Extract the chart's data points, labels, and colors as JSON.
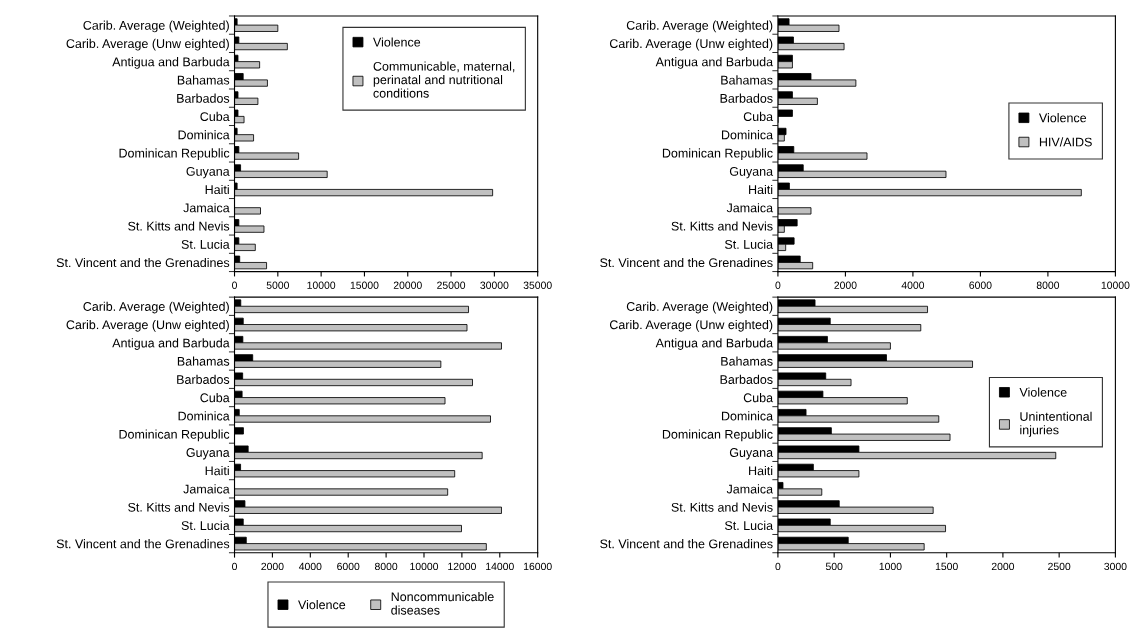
{
  "chart_data": [
    {
      "type": "bar",
      "orientation": "horizontal",
      "categories": [
        "Carib. Average (Weighted)",
        "Carib. Average (Unw eighted)",
        "Antigua and Barbuda",
        "Bahamas",
        "Barbados",
        "Cuba",
        "Dominica",
        "Dominican Republic",
        "Guyana",
        "Haiti",
        "Jamaica",
        "St. Kitts and Nevis",
        "St. Lucia",
        "St. Vincent and the Grenadines"
      ],
      "series": [
        {
          "name": "Violence",
          "color": "#000000",
          "values": [
            300,
            500,
            400,
            1000,
            400,
            400,
            300,
            500,
            700,
            300,
            null,
            500,
            500,
            600
          ]
        },
        {
          "name": "Communicable, maternal,\nperinatal and nutritional\nconditions",
          "color": "#c0c0c0",
          "values": [
            5000,
            6100,
            2900,
            3800,
            2700,
            1100,
            2200,
            7400,
            10700,
            29800,
            3000,
            3400,
            2400,
            3700
          ]
        }
      ],
      "xlim": [
        0,
        35000
      ],
      "xticks": [
        0,
        5000,
        10000,
        15000,
        20000,
        25000,
        30000,
        35000
      ],
      "legend": "top right"
    },
    {
      "type": "bar",
      "orientation": "horizontal",
      "categories": [
        "Carib. Average (Weighted)",
        "Carib. Average (Unw eighted)",
        "Antigua and Barbuda",
        "Bahamas",
        "Barbados",
        "Cuba",
        "Dominica",
        "Dominican Republic",
        "Guyana",
        "Haiti",
        "Jamaica",
        "St. Kitts and Nevis",
        "St. Lucia",
        "St. Vincent and the Grenadines"
      ],
      "series": [
        {
          "name": "Violence",
          "color": "#000000",
          "values": [
            330,
            460,
            430,
            980,
            430,
            430,
            240,
            470,
            750,
            340,
            null,
            570,
            480,
            660
          ]
        },
        {
          "name": "HIV/AIDS",
          "color": "#c0c0c0",
          "values": [
            1810,
            1960,
            430,
            2310,
            1170,
            0,
            190,
            2640,
            4980,
            8990,
            980,
            190,
            230,
            1030
          ]
        }
      ],
      "xlim": [
        0,
        10000
      ],
      "xticks": [
        0,
        2000,
        4000,
        6000,
        8000,
        10000
      ],
      "legend": "center right"
    },
    {
      "type": "bar",
      "orientation": "horizontal",
      "categories": [
        "Carib. Average (Weighted)",
        "Carib. Average (Unw eighted)",
        "Antigua and Barbuda",
        "Bahamas",
        "Barbados",
        "Cuba",
        "Dominica",
        "Dominican Republic",
        "Guyana",
        "Haiti",
        "Jamaica",
        "St. Kitts and Nevis",
        "St. Lucia",
        "St. Vincent and the Grenadines"
      ],
      "series": [
        {
          "name": "Violence",
          "color": "#000000",
          "values": [
            330,
            460,
            440,
            960,
            430,
            400,
            250,
            470,
            720,
            320,
            null,
            550,
            460,
            620
          ]
        },
        {
          "name": "Noncommunicable\ndiseases",
          "color": "#c0c0c0",
          "values": [
            12350,
            12270,
            14090,
            10890,
            12560,
            11110,
            13510,
            null,
            13070,
            11620,
            11250,
            14090,
            11980,
            13290
          ]
        }
      ],
      "xlim": [
        0,
        16000
      ],
      "xticks": [
        0,
        2000,
        4000,
        6000,
        8000,
        10000,
        12000,
        14000,
        16000
      ],
      "legend": "bottom"
    },
    {
      "type": "bar",
      "orientation": "horizontal",
      "categories": [
        "Carib. Average (Weighted)",
        "Carib. Average (Unw eighted)",
        "Antigua and Barbuda",
        "Bahamas",
        "Barbados",
        "Cuba",
        "Dominica",
        "Dominican Republic",
        "Guyana",
        "Haiti",
        "Jamaica",
        "St. Kitts and Nevis",
        "St. Lucia",
        "St. Vincent and the Grenadines"
      ],
      "series": [
        {
          "name": "Violence",
          "color": "#000000",
          "values": [
            330,
            465,
            440,
            965,
            425,
            400,
            250,
            475,
            720,
            315,
            45,
            545,
            465,
            625
          ]
        },
        {
          "name": "Unintentional\ninjuries",
          "color": "#c0c0c0",
          "values": [
            1330,
            1270,
            1000,
            1730,
            650,
            1150,
            1430,
            1530,
            2470,
            720,
            390,
            1380,
            1490,
            1300
          ]
        }
      ],
      "xlim": [
        0,
        3000
      ],
      "xticks": [
        0,
        500,
        1000,
        1500,
        2000,
        2500,
        3000
      ],
      "legend": "center right"
    }
  ]
}
